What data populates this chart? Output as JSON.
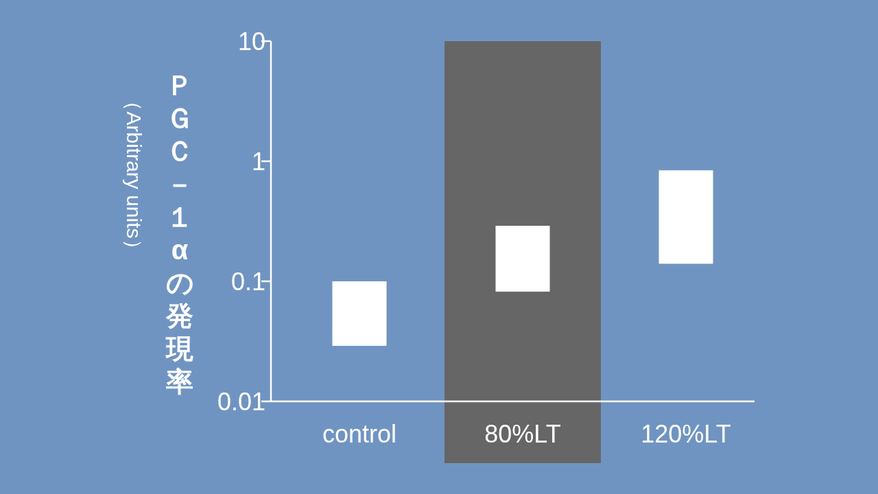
{
  "chart_data": {
    "type": "bar",
    "ylabel": "ＰＧＣ－１αの発現率（Arbitrary units）",
    "categories": [
      "control",
      "80%LT",
      "120%LT"
    ],
    "base": [
      0.029,
      0.082,
      0.14
    ],
    "values": [
      0.071,
      0.208,
      0.7
    ],
    "color": "#ffffff",
    "log": true,
    "ylim": [
      0.01,
      10
    ],
    "yticks": [
      0.01,
      0.1,
      1,
      10
    ],
    "bands": [
      {
        "axis": "x",
        "from": "80%LT",
        "to": "80%LT",
        "color": "#666666"
      }
    ]
  }
}
